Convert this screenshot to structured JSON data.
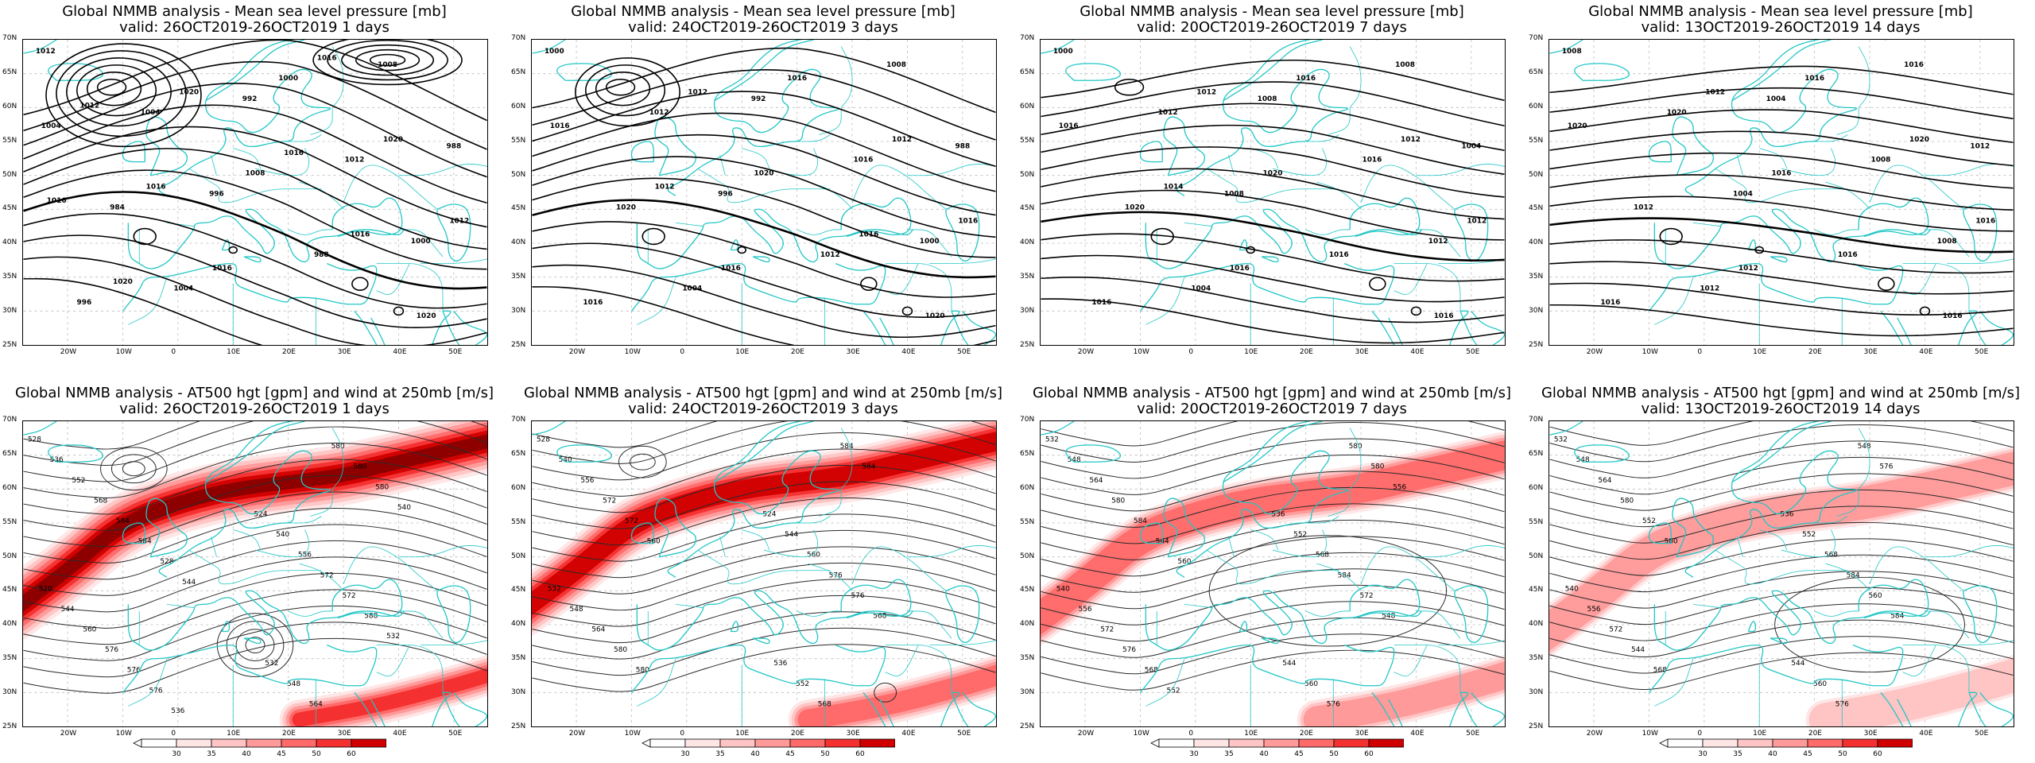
{
  "panels": [
    {
      "id": "mslp-1d",
      "row": 0,
      "col": 0,
      "line1": "Global NMMB analysis - Mean sea level pressure [mb]",
      "line2": "valid: 26OCT2019-26OCT2019   1 days",
      "kind": "mslp",
      "scale": 1.0
    },
    {
      "id": "mslp-3d",
      "row": 0,
      "col": 1,
      "line1": "Global NMMB analysis - Mean sea level pressure [mb]",
      "line2": "valid: 24OCT2019-26OCT2019   3 days",
      "kind": "mslp",
      "scale": 0.8
    },
    {
      "id": "mslp-7d",
      "row": 0,
      "col": 2,
      "line1": "Global NMMB analysis - Mean sea level pressure [mb]",
      "line2": "valid: 20OCT2019-26OCT2019   7 days",
      "kind": "mslp",
      "scale": 0.5
    },
    {
      "id": "mslp-14d",
      "row": 0,
      "col": 3,
      "line1": "Global NMMB analysis - Mean sea level pressure [mb]",
      "line2": "valid: 13OCT2019-26OCT2019   14 days",
      "kind": "mslp",
      "scale": 0.35
    },
    {
      "id": "z500-1d",
      "row": 1,
      "col": 0,
      "line1": "Global NMMB analysis - AT500 hgt [gpm] and wind at 250mb [m/s]",
      "line2": "valid: 26OCT2019-26OCT2019   1 days",
      "kind": "z500",
      "scale": 1.0
    },
    {
      "id": "z500-3d",
      "row": 1,
      "col": 1,
      "line1": "Global NMMB analysis - AT500 hgt [gpm] and wind at 250mb [m/s]",
      "line2": "valid: 24OCT2019-26OCT2019   3 days",
      "kind": "z500",
      "scale": 0.75
    },
    {
      "id": "z500-7d",
      "row": 1,
      "col": 2,
      "line1": "Global NMMB analysis - AT500 hgt [gpm] and wind at 250mb [m/s]",
      "line2": "valid: 20OCT2019-26OCT2019   7 days",
      "kind": "z500",
      "scale": 0.5
    },
    {
      "id": "z500-14d",
      "row": 1,
      "col": 3,
      "line1": "Global NMMB analysis - AT500 hgt [gpm] and wind at 250mb [m/s]",
      "line2": "valid: 13OCT2019-26OCT2019   14 days",
      "kind": "z500",
      "scale": 0.4
    }
  ],
  "lat_labels": [
    "70N",
    "65N",
    "60N",
    "55N",
    "50N",
    "45N",
    "40N",
    "35N",
    "30N",
    "25N"
  ],
  "lon_labels": [
    "20W",
    "10W",
    "0",
    "10E",
    "20E",
    "30E",
    "40E",
    "50E"
  ],
  "colorbar": {
    "ticks": [
      "30",
      "35",
      "40",
      "45",
      "50",
      "60"
    ],
    "colors": [
      "#ffe6e6",
      "#ffc4c4",
      "#ff9a9a",
      "#ff6a6a",
      "#f53030",
      "#d10000",
      "#8a0000"
    ]
  },
  "mslp_labels": {
    "mslp-1d": [
      "1012",
      "992",
      "988",
      "996",
      "1000",
      "1004",
      "1008",
      "1004",
      "1012",
      "984",
      "988",
      "996",
      "1000",
      "1004",
      "1008",
      "1012",
      "1016",
      "1020",
      "1020",
      "1020",
      "1016",
      "1016",
      "1020",
      "1016",
      "1012",
      "1016",
      "1016"
    ],
    "mslp-3d": [
      "1000",
      "992",
      "988",
      "996",
      "1000",
      "1004",
      "1008",
      "1012",
      "1016",
      "1020",
      "1012",
      "1016",
      "1016",
      "1016",
      "1020",
      "1016",
      "1016",
      "1020",
      "1012",
      "1012",
      "1012",
      "1016"
    ],
    "mslp-7d": [
      "1000",
      "1008",
      "1004",
      "1008",
      "1012",
      "1004",
      "1008",
      "1012",
      "1016",
      "1020",
      "1016",
      "1016",
      "1016",
      "1016",
      "1020",
      "1012",
      "1016",
      "1016",
      "1012",
      "1012",
      "1014"
    ],
    "mslp-14d": [
      "1008",
      "1004",
      "1012",
      "1004",
      "1008",
      "1012",
      "1016",
      "1020",
      "1008",
      "1012",
      "1016",
      "1016",
      "1016",
      "1020",
      "1016",
      "1016",
      "1012",
      "1016",
      "1012",
      "1020"
    ]
  },
  "z500_labels": {
    "z500-1d": [
      "528",
      "524",
      "520",
      "532",
      "536",
      "540",
      "544",
      "548",
      "552",
      "556",
      "560",
      "564",
      "568",
      "572",
      "576",
      "580",
      "584",
      "572",
      "576",
      "580",
      "584",
      "588",
      "576",
      "580",
      "528",
      "532",
      "536",
      "540",
      "544"
    ],
    "z500-3d": [
      "528",
      "524",
      "532",
      "536",
      "540",
      "544",
      "548",
      "552",
      "556",
      "560",
      "564",
      "568",
      "572",
      "576",
      "580",
      "584",
      "572",
      "576",
      "580",
      "584",
      "560",
      "568"
    ],
    "z500-7d": [
      "532",
      "536",
      "540",
      "544",
      "548",
      "552",
      "556",
      "560",
      "564",
      "568",
      "572",
      "576",
      "580",
      "584",
      "576",
      "580",
      "584",
      "572",
      "568",
      "580",
      "544",
      "548",
      "552",
      "556",
      "560"
    ],
    "z500-14d": [
      "532",
      "536",
      "540",
      "544",
      "548",
      "552",
      "556",
      "560",
      "564",
      "568",
      "572",
      "576",
      "580",
      "584",
      "544",
      "548",
      "552",
      "560",
      "568",
      "576",
      "580",
      "584"
    ]
  }
}
